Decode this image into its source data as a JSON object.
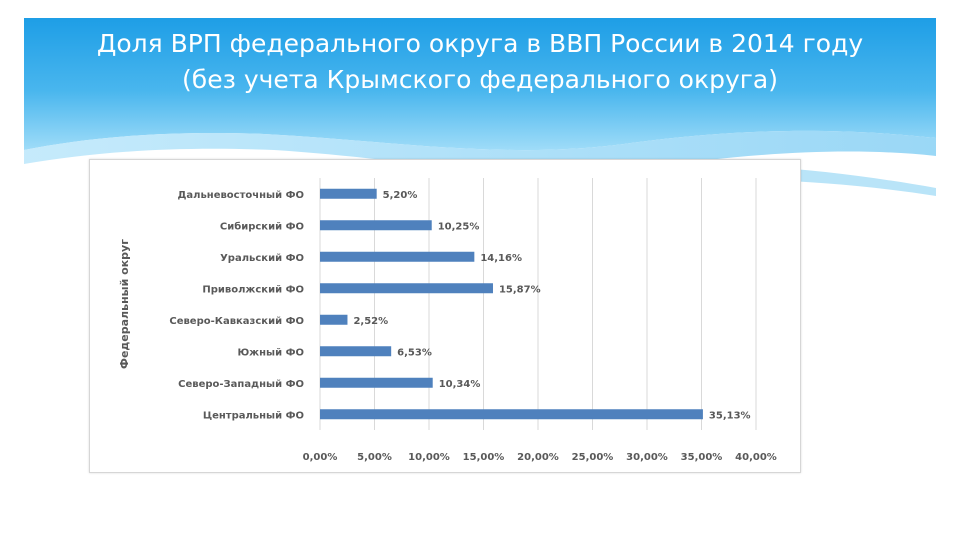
{
  "slide": {
    "title_line1": "Доля ВРП федерального округа в ВВП России в 2014 году",
    "title_line2": "(без учета Крымского федерального округа)"
  },
  "colors": {
    "header_top": "#29a5e8",
    "header_bottom": "#7fd0f6",
    "bar": "#4f81bd",
    "grid": "#d9d9d9",
    "text": "#595959"
  },
  "chart_data": {
    "type": "bar",
    "orientation": "horizontal",
    "title": "",
    "xlabel": "",
    "ylabel": "Федеральный округ",
    "categories": [
      "Дальневосточный ФО",
      "Сибирский ФО",
      "Уральский ФО",
      "Приволжский ФО",
      "Северо-Кавказский ФО",
      "Южный ФО",
      "Северо-Западный ФО",
      "Центральный ФО"
    ],
    "values": [
      5.2,
      10.25,
      14.16,
      15.87,
      2.52,
      6.53,
      10.34,
      35.13
    ],
    "value_labels": [
      "5,20%",
      "10,25%",
      "14,16%",
      "15,87%",
      "2,52%",
      "6,53%",
      "10,34%",
      "35,13%"
    ],
    "xlim": [
      0,
      40
    ],
    "x_ticks": [
      0,
      5,
      10,
      15,
      20,
      25,
      30,
      35,
      40
    ],
    "x_tick_labels": [
      "0,00%",
      "5,00%",
      "10,00%",
      "15,00%",
      "20,00%",
      "25,00%",
      "30,00%",
      "35,00%",
      "40,00%"
    ],
    "grid": true,
    "legend": "none"
  }
}
